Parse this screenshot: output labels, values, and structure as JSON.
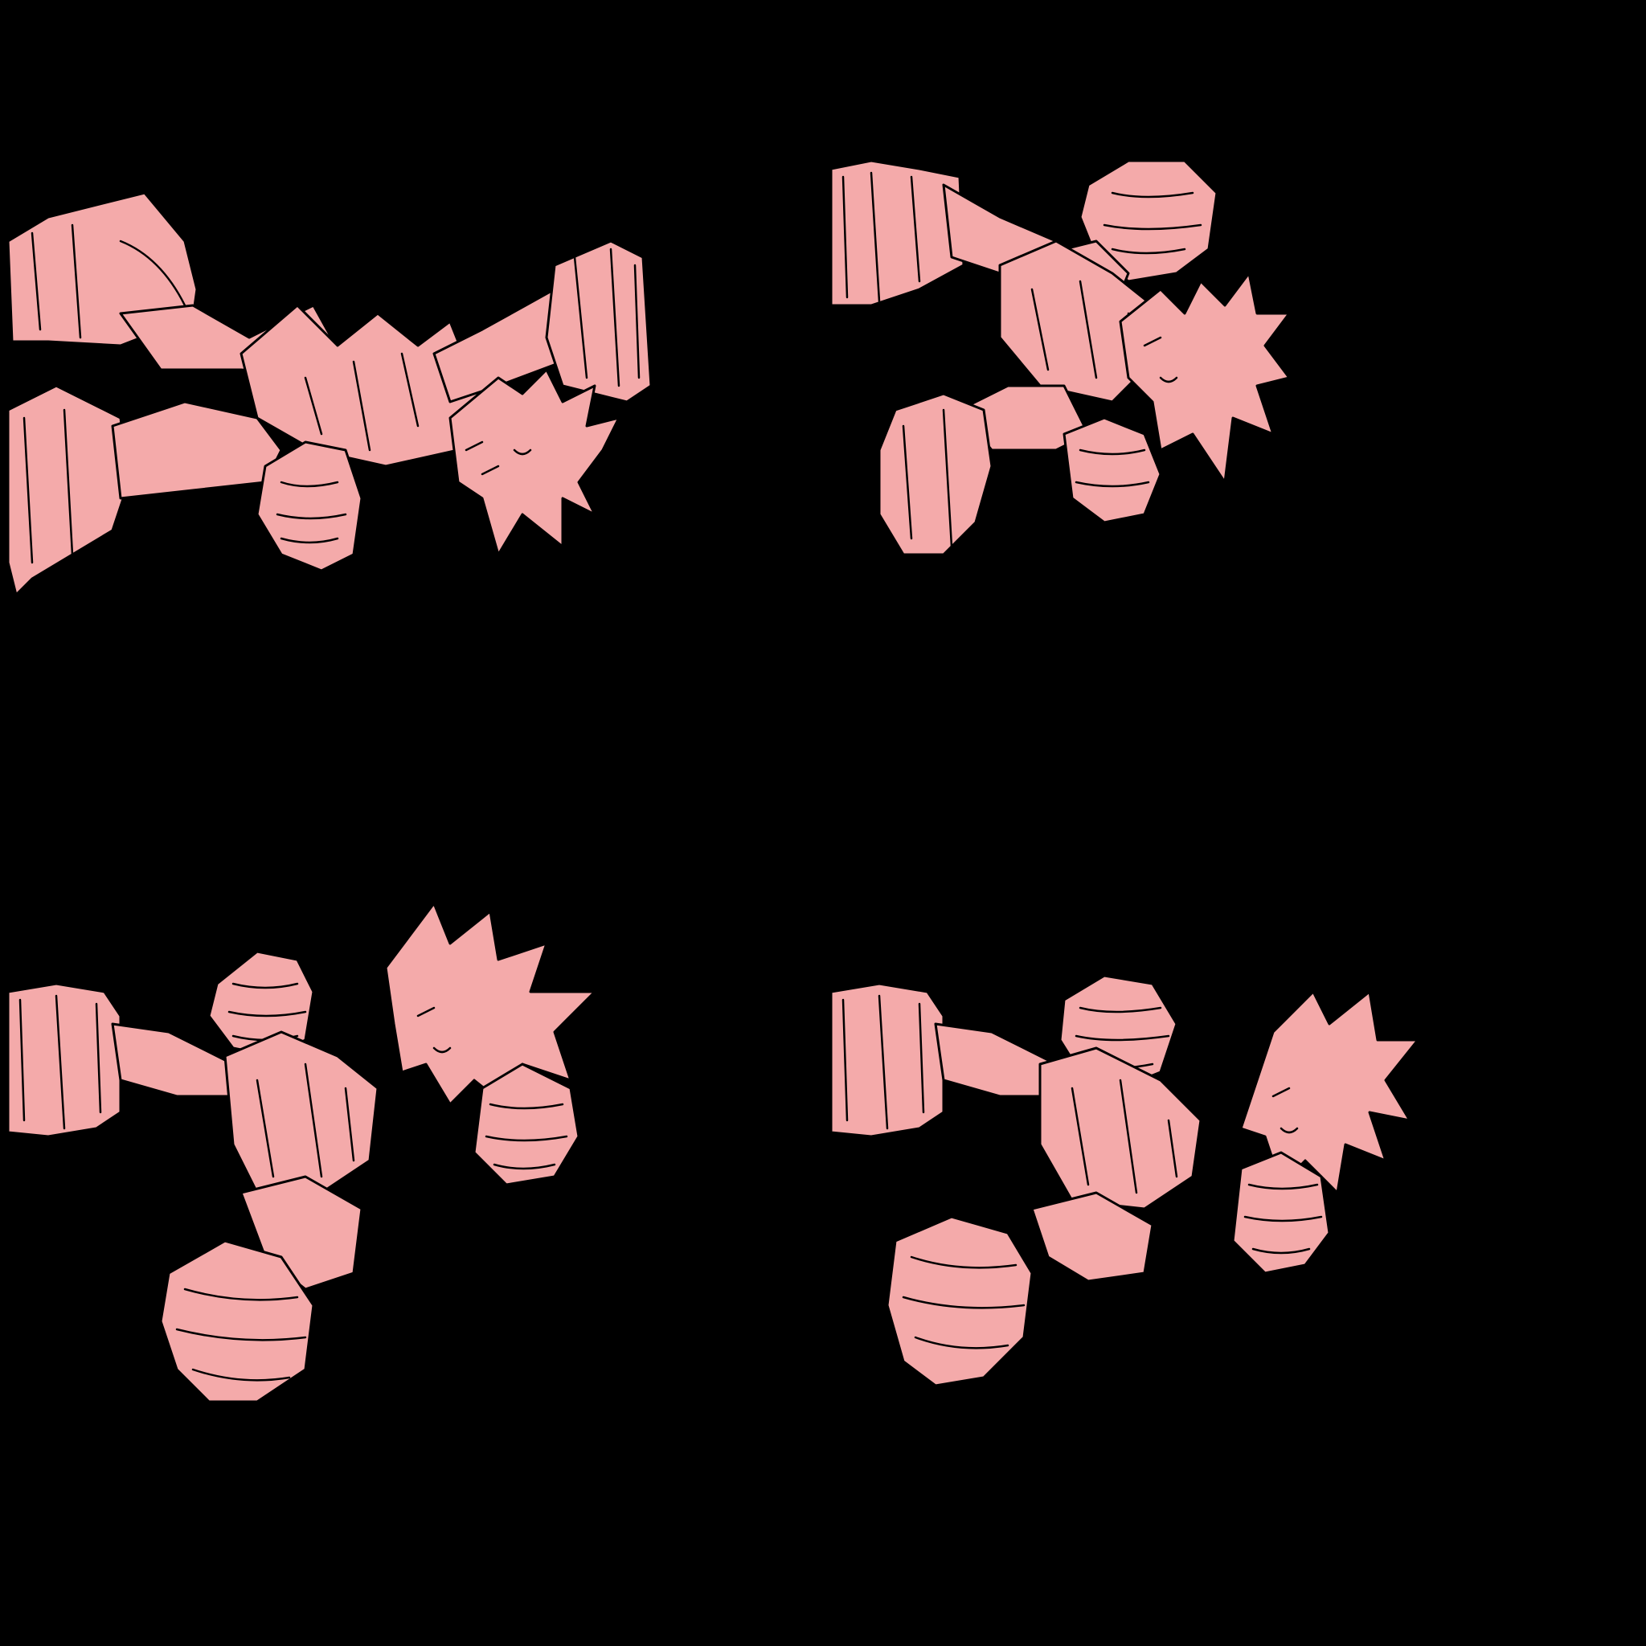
{
  "sprite_sheet": {
    "background_color": "#000000",
    "sprite_fill_color": "#F4AAAA",
    "outline_color": "#000000",
    "layout": "2x2 grid",
    "frames": [
      {
        "pose": "kick-extended-left-arm-forward"
      },
      {
        "pose": "punch-up-left-knee-bent"
      },
      {
        "pose": "punch-up-both-fists-raised"
      },
      {
        "pose": "punch-up-fist-high-knee-bent"
      }
    ]
  }
}
